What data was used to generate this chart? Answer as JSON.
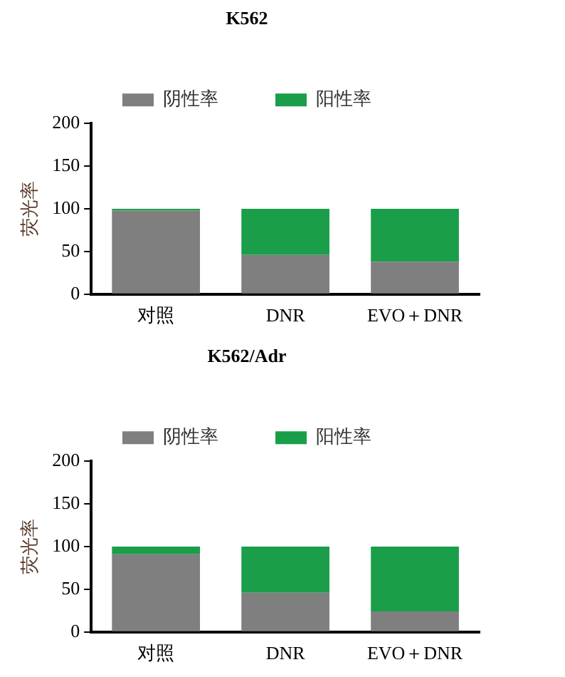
{
  "chart_data": [
    {
      "type": "bar",
      "title": "K562",
      "ylabel": "荧光率",
      "categories": [
        "对照",
        "DNR",
        "EVO＋DNR"
      ],
      "stacked": true,
      "series": [
        {
          "name": "阴性率",
          "color": "#7f7f7f",
          "values": [
            98,
            46,
            38
          ]
        },
        {
          "name": "阳性率",
          "color": "#1a9e4a",
          "values": [
            2,
            54,
            62
          ]
        }
      ],
      "ylim": [
        0,
        200
      ],
      "yticks": [
        0,
        50,
        100,
        150,
        200
      ],
      "grid": false,
      "legend": "top"
    },
    {
      "type": "bar",
      "title": "K562/Adr",
      "ylabel": "荧光率",
      "categories": [
        "对照",
        "DNR",
        "EVO＋DNR"
      ],
      "stacked": true,
      "series": [
        {
          "name": "阴性率",
          "color": "#7f7f7f",
          "values": [
            91,
            46,
            24
          ]
        },
        {
          "name": "阳性率",
          "color": "#1a9e4a",
          "values": [
            9,
            54,
            76
          ]
        }
      ],
      "ylim": [
        0,
        200
      ],
      "yticks": [
        0,
        50,
        100,
        150,
        200
      ],
      "grid": false,
      "legend": "top"
    }
  ]
}
